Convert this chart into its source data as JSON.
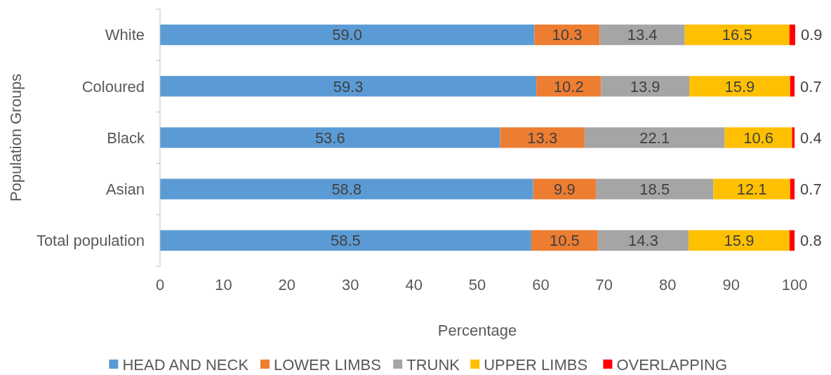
{
  "chart_data": {
    "type": "bar",
    "orientation": "horizontal",
    "stacked": true,
    "ylabel": "Population Groups",
    "xlabel": "Percentage",
    "categories": [
      "White",
      "Coloured",
      "Black",
      "Asian",
      "Total population"
    ],
    "series": [
      {
        "name": "HEAD AND NECK",
        "color": "#5b9bd5",
        "values": [
          59.0,
          59.3,
          53.6,
          58.8,
          58.5
        ],
        "value_labels": [
          "59.0",
          "59.3",
          "53.6",
          "58.8",
          "58.5"
        ]
      },
      {
        "name": "LOWER LIMBS",
        "color": "#ed7d31",
        "values": [
          10.3,
          10.2,
          13.3,
          9.9,
          10.5
        ],
        "value_labels": [
          "10.3",
          "10.2",
          "13.3",
          "9.9",
          "10.5"
        ]
      },
      {
        "name": "TRUNK",
        "color": "#a5a5a5",
        "values": [
          13.4,
          13.9,
          22.1,
          18.5,
          14.3
        ],
        "value_labels": [
          "13.4",
          "13.9",
          "22.1",
          "18.5",
          "14.3"
        ]
      },
      {
        "name": "UPPER LIMBS",
        "color": "#ffc000",
        "values": [
          16.5,
          15.9,
          10.6,
          12.1,
          15.9
        ],
        "value_labels": [
          "16.5",
          "15.9",
          "10.6",
          "12.1",
          "15.9"
        ]
      },
      {
        "name": "OVERLAPPING",
        "color": "#ff0000",
        "values": [
          0.9,
          0.7,
          0.4,
          0.7,
          0.8
        ],
        "value_labels": [
          "0.9",
          "0.7",
          "0.4",
          "0.7",
          "0.8"
        ]
      }
    ],
    "xlim": [
      0,
      100.1
    ],
    "xticks": [
      0,
      10,
      20,
      30,
      40,
      50,
      60,
      70,
      80,
      90,
      100
    ],
    "legend": "bottom",
    "grid": false
  }
}
